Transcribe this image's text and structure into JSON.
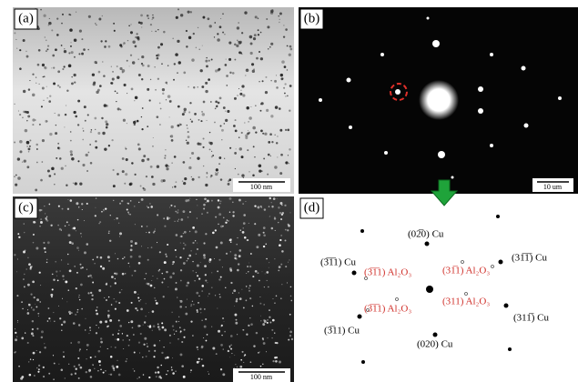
{
  "panels": [
    {
      "label": "(a)",
      "scale_bar": "100 nm"
    },
    {
      "label": "(b)",
      "scale_bar": "10 um"
    },
    {
      "label": "(c)",
      "scale_bar": "100 nm"
    },
    {
      "label": "(d)"
    }
  ],
  "pattern_labels": [
    "(02̅0) Cu",
    "(3̅1̅1) Cu",
    "(31̅1̅) Cu",
    "(3̅11) Cu",
    "(311̅) Cu",
    "(020) Cu",
    "(3̅1̅1) Al₂O₃",
    "(31̅1) Al₂O₃",
    "(3̅1̅1) Al₂O₃",
    "(311) Al₂O₃"
  ]
}
